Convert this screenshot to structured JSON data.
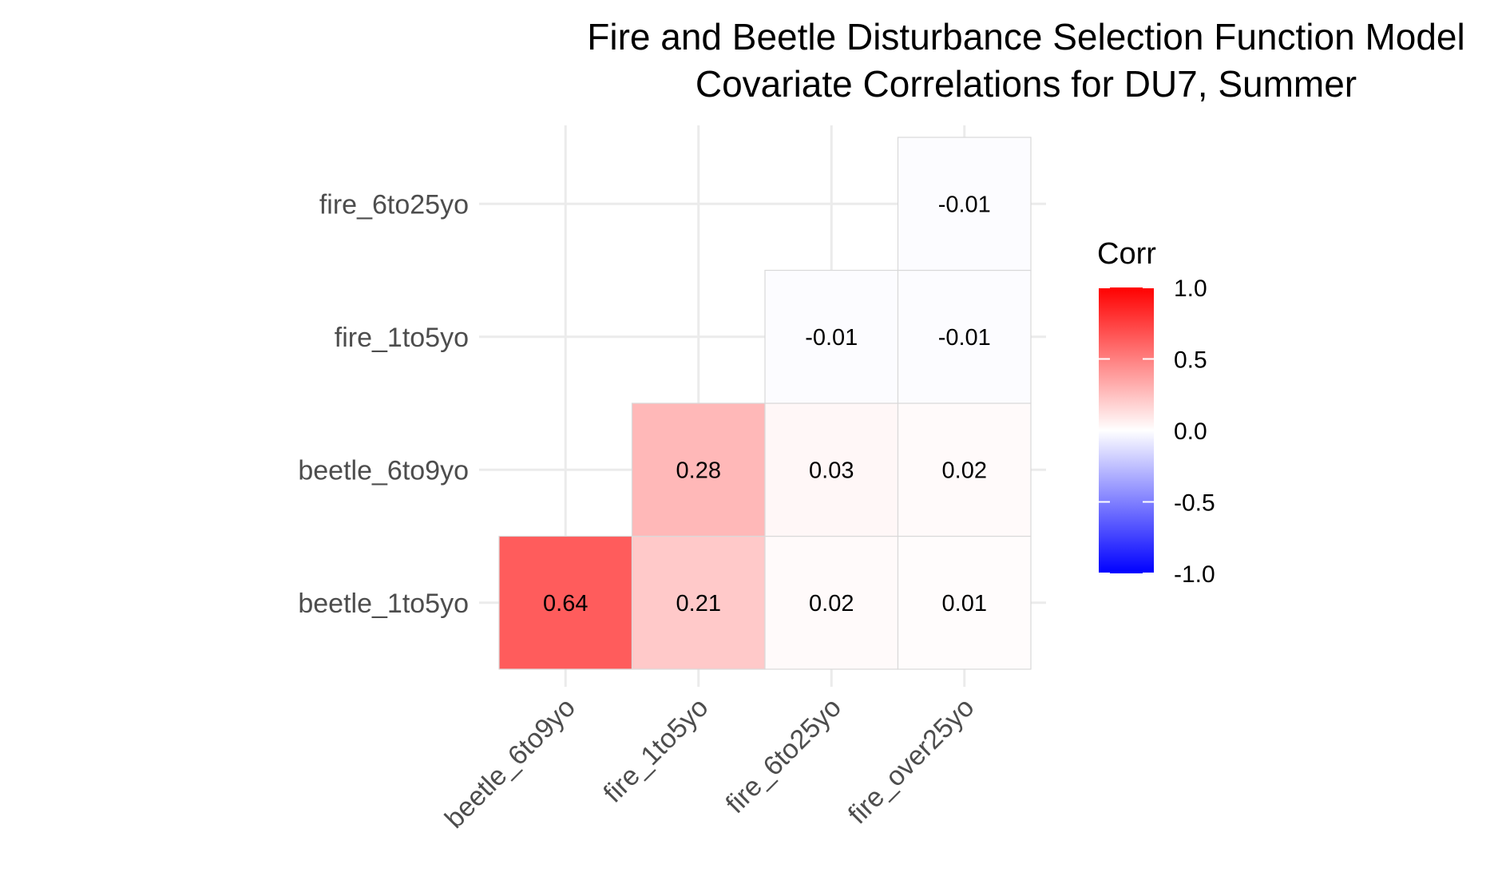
{
  "chart_data": {
    "type": "heatmap",
    "title": "Fire and Beetle Disturbance Selection Function Model",
    "subtitle": "Covariate Correlations for DU7, Summer",
    "x_categories": [
      "beetle_6to9yo",
      "fire_1to5yo",
      "fire_6to25yo",
      "fire_over25yo"
    ],
    "y_categories": [
      "beetle_1to5yo",
      "beetle_6to9yo",
      "fire_1to5yo",
      "fire_6to25yo"
    ],
    "cells": [
      {
        "x": "beetle_6to9yo",
        "y": "beetle_1to5yo",
        "value": 0.64,
        "label": "0.64"
      },
      {
        "x": "fire_1to5yo",
        "y": "beetle_1to5yo",
        "value": 0.21,
        "label": "0.21"
      },
      {
        "x": "fire_6to25yo",
        "y": "beetle_1to5yo",
        "value": 0.02,
        "label": "0.02"
      },
      {
        "x": "fire_over25yo",
        "y": "beetle_1to5yo",
        "value": 0.01,
        "label": "0.01"
      },
      {
        "x": "fire_1to5yo",
        "y": "beetle_6to9yo",
        "value": 0.28,
        "label": "0.28"
      },
      {
        "x": "fire_6to25yo",
        "y": "beetle_6to9yo",
        "value": 0.03,
        "label": "0.03"
      },
      {
        "x": "fire_over25yo",
        "y": "beetle_6to9yo",
        "value": 0.02,
        "label": "0.02"
      },
      {
        "x": "fire_6to25yo",
        "y": "fire_1to5yo",
        "value": -0.01,
        "label": "-0.01"
      },
      {
        "x": "fire_over25yo",
        "y": "fire_1to5yo",
        "value": -0.01,
        "label": "-0.01"
      },
      {
        "x": "fire_over25yo",
        "y": "fire_6to25yo",
        "value": -0.01,
        "label": "-0.01"
      }
    ],
    "legend": {
      "title": "Corr",
      "placement": "right",
      "breaks": [
        1.0,
        0.5,
        0.0,
        -0.5,
        -1.0
      ],
      "labels": [
        "1.0",
        "0.5",
        "0.0",
        "-0.5",
        "-1.0"
      ],
      "range": [
        -1,
        1
      ],
      "colors": {
        "low": "#0000ff",
        "mid": "#ffffff",
        "high": "#ff0000"
      }
    },
    "grid": true,
    "colors": {
      "grid": "#ebebeb",
      "tile_border": "#d9d9d9",
      "tick_text": "#4d4d4d"
    }
  }
}
